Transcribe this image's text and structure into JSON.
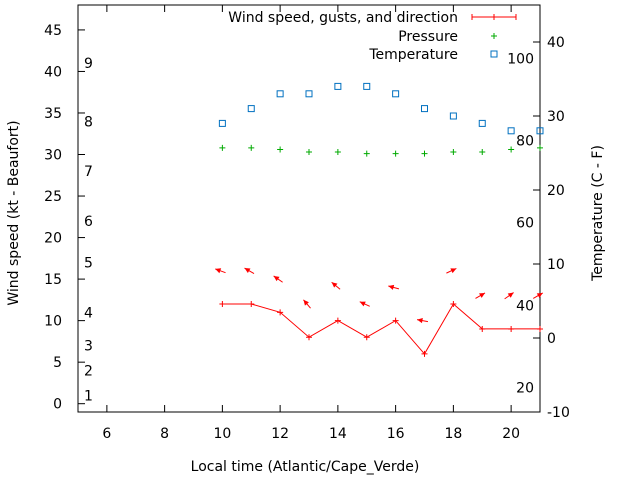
{
  "chart_data": {
    "type": "line",
    "title": "",
    "xlabel": "Local time (Atlantic/Cape_Verde)",
    "ylabel_left": "Wind speed (kt - Beaufort)",
    "ylabel_right": "Temperature (C - F)",
    "xlim": [
      5,
      21
    ],
    "ylim_left": [
      -1,
      48
    ],
    "ylim_right": [
      -10,
      45
    ],
    "grid": false,
    "legend_placement": "top-right",
    "x_ticks": [
      6,
      8,
      10,
      12,
      14,
      16,
      18,
      20
    ],
    "y_left_ticks": [
      0,
      5,
      10,
      15,
      20,
      25,
      30,
      35,
      40,
      45
    ],
    "y_right_ticks": [
      -10,
      0,
      10,
      20,
      30,
      40
    ],
    "beaufort_labels": [
      {
        "label": "1",
        "kt": 1
      },
      {
        "label": "2",
        "kt": 4
      },
      {
        "label": "3",
        "kt": 7
      },
      {
        "label": "4",
        "kt": 11
      },
      {
        "label": "5",
        "kt": 17
      },
      {
        "label": "6",
        "kt": 22
      },
      {
        "label": "7",
        "kt": 28
      },
      {
        "label": "8",
        "kt": 34
      },
      {
        "label": "9",
        "kt": 41
      }
    ],
    "fahrenheit_labels": [
      {
        "label": "20",
        "temp_c": -6.7
      },
      {
        "label": "40",
        "temp_c": 4.4
      },
      {
        "label": "60",
        "temp_c": 15.6
      },
      {
        "label": "80",
        "temp_c": 26.7
      },
      {
        "label": "100",
        "temp_c": 37.8
      }
    ],
    "series": [
      {
        "name": "Wind speed, gusts, and direction",
        "color": "#ff0000",
        "axis": "left",
        "x": [
          10,
          11,
          12,
          13,
          14,
          15,
          16,
          17,
          18,
          19,
          20,
          21
        ],
        "values": [
          12,
          12,
          11,
          8,
          10,
          8,
          10,
          6,
          12,
          9,
          9,
          9
        ],
        "arrow_y": [
          16,
          16,
          15,
          12,
          14.2,
          12,
          14,
          10,
          16,
          13,
          13,
          13
        ],
        "arrow_angle_deg": [
          160,
          150,
          145,
          130,
          140,
          155,
          165,
          170,
          25,
          30,
          35,
          30
        ]
      },
      {
        "name": "Pressure",
        "color": "#00aa00",
        "axis": "left",
        "x": [
          10,
          11,
          12,
          13,
          14,
          15,
          16,
          17,
          18,
          19,
          20,
          21
        ],
        "values": [
          30.8,
          30.8,
          30.6,
          30.3,
          30.3,
          30.1,
          30.1,
          30.1,
          30.3,
          30.3,
          30.6,
          30.8
        ]
      },
      {
        "name": "Temperature",
        "color": "#0070c0",
        "axis": "right",
        "x": [
          10,
          11,
          12,
          13,
          14,
          15,
          16,
          17,
          18,
          19,
          20,
          21
        ],
        "values": [
          29,
          31,
          33,
          33,
          34,
          34,
          33,
          31,
          30,
          29,
          28,
          28
        ]
      }
    ]
  }
}
